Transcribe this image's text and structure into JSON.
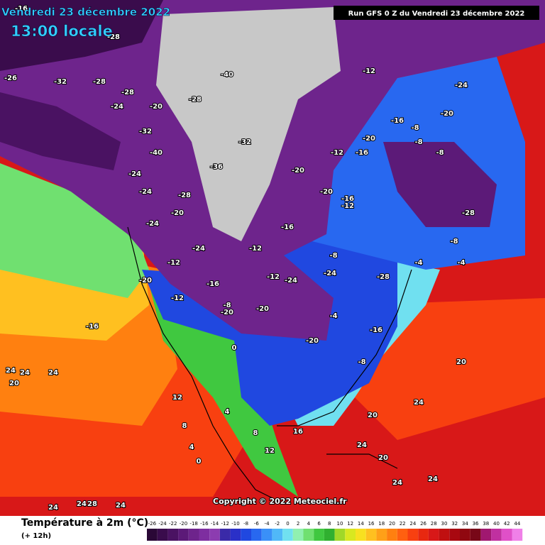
{
  "header": {
    "date": "Vendredi 23 décembre 2022",
    "time": "13:00 locale",
    "run": "Run GFS 0 Z du Vendredi 23 décembre 2022"
  },
  "copyright": "Copyright © 2022 Meteociel.fr",
  "legend": {
    "title": "Température à 2m (°C)",
    "subtitle": "(+ 12h)",
    "values": [
      -26,
      -24,
      -22,
      -20,
      -18,
      -16,
      -14,
      -12,
      -10,
      -8,
      -6,
      -4,
      -2,
      0,
      2,
      4,
      6,
      8,
      10,
      12,
      14,
      16,
      18,
      20,
      22,
      24,
      26,
      28,
      30,
      32,
      34,
      36,
      38,
      40,
      42,
      44
    ],
    "colors": [
      "#2a0836",
      "#3a0c4c",
      "#4a1262",
      "#5c1a78",
      "#6e248c",
      "#7e2ea0",
      "#8c3cb0",
      "#3a2aa8",
      "#2a30c8",
      "#2048e0",
      "#2868f0",
      "#3a90f8",
      "#50b8f8",
      "#70e0f0",
      "#90f0b0",
      "#70e070",
      "#40c840",
      "#30b030",
      "#a0d828",
      "#d8e820",
      "#f8e020",
      "#ffc020",
      "#ffa018",
      "#ff8010",
      "#ff6010",
      "#f84010",
      "#e82810",
      "#d81818",
      "#c01010",
      "#a80810",
      "#900810",
      "#780818",
      "#a01870",
      "#c030a0",
      "#e050c8",
      "#f080e8"
    ]
  },
  "map_labels": [
    -16,
    -28,
    -28,
    -26,
    -32,
    -28,
    -24,
    -20,
    -28,
    -32,
    -40,
    -36,
    -40,
    -32,
    -28,
    -24,
    -24,
    -24,
    -20,
    -24,
    -12,
    -20,
    -16,
    -8,
    -12,
    -8,
    -20,
    -16,
    -12,
    -20,
    -16,
    -12,
    -28,
    -24,
    -20,
    -16,
    -20,
    -20,
    -24,
    -28,
    -24,
    -20,
    -12,
    -16,
    -8,
    -4,
    -8,
    -4,
    -8,
    -16,
    -20,
    -16,
    -12,
    -8,
    -8,
    -12,
    -4,
    0,
    4,
    8,
    12,
    16,
    20,
    20,
    24,
    24,
    24,
    28,
    24,
    20,
    24,
    24,
    24,
    20,
    24,
    24,
    24,
    12,
    8,
    4,
    0
  ]
}
